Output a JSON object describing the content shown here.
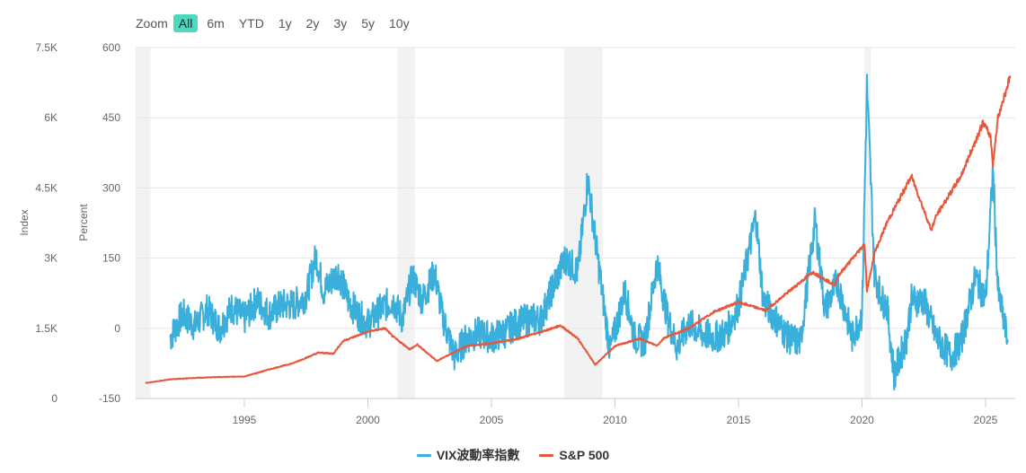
{
  "zoom_bar": {
    "label": "Zoom",
    "buttons": [
      {
        "label": "All",
        "active": true
      },
      {
        "label": "6m",
        "active": false
      },
      {
        "label": "YTD",
        "active": false
      },
      {
        "label": "1y",
        "active": false
      },
      {
        "label": "2y",
        "active": false
      },
      {
        "label": "3y",
        "active": false
      },
      {
        "label": "5y",
        "active": false
      },
      {
        "label": "10y",
        "active": false
      }
    ]
  },
  "legend": [
    {
      "label": "VIX波動率指數",
      "color": "#3aafdb"
    },
    {
      "label": "S&P 500",
      "color": "#e8573c"
    }
  ],
  "chart_data": {
    "type": "line",
    "title": "",
    "xlabel": "",
    "x_ticks": [
      "1995",
      "2000",
      "2005",
      "2010",
      "2015",
      "2020",
      "2025"
    ],
    "x_range": [
      1990.6,
      2026.2
    ],
    "y_axes": [
      {
        "id": "index",
        "label": "Index",
        "ticks": [
          "0",
          "1.5K",
          "3K",
          "4.5K",
          "6K",
          "7.5K"
        ],
        "range": [
          0,
          7500
        ]
      },
      {
        "id": "percent",
        "label": "Percent",
        "ticks": [
          "-150",
          "0",
          "150",
          "300",
          "450",
          "600"
        ],
        "range": [
          -150,
          600
        ]
      }
    ],
    "grid": true,
    "legend_position": "bottom-center",
    "recession_bands": [
      [
        1990.6,
        1991.2
      ],
      [
        2001.2,
        2001.9
      ],
      [
        2007.95,
        2009.5
      ],
      [
        2020.1,
        2020.35
      ]
    ],
    "series": [
      {
        "name": "VIX波動率指數",
        "axis": "percent",
        "color": "#3aafdb",
        "x": [
          1992.0,
          1992.5,
          1993.0,
          1993.5,
          1994.0,
          1994.5,
          1995.0,
          1995.5,
          1996.0,
          1996.5,
          1997.0,
          1997.5,
          1997.9,
          1998.2,
          1998.8,
          1999.2,
          1999.6,
          2000.0,
          2000.5,
          2001.0,
          2001.4,
          2001.8,
          2002.2,
          2002.7,
          2003.0,
          2003.5,
          2004.0,
          2004.5,
          2005.0,
          2005.5,
          2006.0,
          2006.5,
          2007.0,
          2007.5,
          2008.0,
          2008.5,
          2008.9,
          2009.3,
          2009.8,
          2010.4,
          2010.8,
          2011.2,
          2011.7,
          2012.1,
          2012.5,
          2013.0,
          2013.5,
          2014.0,
          2014.5,
          2015.0,
          2015.7,
          2016.0,
          2016.5,
          2017.0,
          2017.5,
          2018.1,
          2018.5,
          2019.0,
          2019.6,
          2020.0,
          2020.2,
          2020.5,
          2020.8,
          2021.0,
          2021.3,
          2021.8,
          2022.0,
          2022.5,
          2023.0,
          2023.6,
          2024.0,
          2024.6,
          2025.0,
          2025.3,
          2025.5,
          2025.9
        ],
        "values": [
          -20,
          30,
          5,
          40,
          0,
          45,
          20,
          60,
          30,
          50,
          50,
          70,
          155,
          80,
          120,
          60,
          30,
          10,
          40,
          60,
          20,
          110,
          60,
          120,
          30,
          -60,
          -20,
          -10,
          -20,
          -10,
          10,
          20,
          20,
          90,
          150,
          120,
          320,
          150,
          -50,
          80,
          -20,
          -30,
          140,
          30,
          -40,
          10,
          -10,
          -20,
          -10,
          50,
          240,
          60,
          20,
          -20,
          -30,
          230,
          40,
          100,
          -20,
          30,
          520,
          120,
          60,
          50,
          -100,
          -20,
          60,
          60,
          -20,
          -60,
          -30,
          110,
          60,
          340,
          80,
          -30
        ]
      },
      {
        "name": "S&P 500",
        "axis": "index",
        "color": "#e8573c",
        "x": [
          1991.0,
          1992.0,
          1993.0,
          1994.0,
          1995.0,
          1996.0,
          1997.0,
          1998.0,
          1998.6,
          1999.0,
          2000.0,
          2000.7,
          2001.0,
          2001.7,
          2002.0,
          2002.8,
          2003.0,
          2004.0,
          2005.0,
          2006.0,
          2007.0,
          2007.8,
          2008.5,
          2009.2,
          2010.0,
          2011.0,
          2011.7,
          2012.0,
          2013.0,
          2014.0,
          2015.0,
          2016.1,
          2017.0,
          2018.0,
          2018.9,
          2019.0,
          2020.1,
          2020.2,
          2020.5,
          2021.0,
          2022.0,
          2022.8,
          2023.0,
          2024.0,
          2024.9,
          2025.2,
          2025.3,
          2025.5,
          2026.0
        ],
        "values": [
          330,
          410,
          440,
          460,
          470,
          620,
          760,
          980,
          960,
          1230,
          1430,
          1500,
          1330,
          1050,
          1150,
          800,
          860,
          1120,
          1180,
          1270,
          1420,
          1560,
          1280,
          720,
          1120,
          1280,
          1130,
          1300,
          1500,
          1850,
          2060,
          1880,
          2270,
          2700,
          2420,
          2600,
          3300,
          2300,
          3100,
          3750,
          4750,
          3600,
          3900,
          4750,
          5900,
          5600,
          5000,
          6000,
          6900
        ]
      }
    ]
  }
}
